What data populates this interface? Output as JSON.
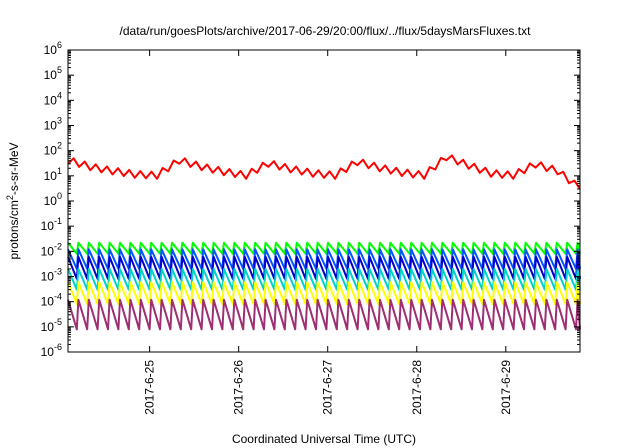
{
  "chart_data": {
    "type": "line",
    "title": "/data/run/goesPlots/archive/2017-06-29/20:00/flux/../flux/5daysMarsFluxes.txt",
    "xlabel": "Coordinated Universal Time (UTC)",
    "ylabel": "protons/cm2-s-sr-MeV",
    "ylabel_parts": {
      "prefix": "protons/cm",
      "sup": "2",
      "suffix": "-s-sr-MeV"
    },
    "x_ticks": [
      "2017-6-25",
      "2017-6-26",
      "2017-6-27",
      "2017-6-28",
      "2017-6-29"
    ],
    "x_range": [
      "2017-06-24 02:00",
      "2017-06-29 20:00"
    ],
    "y_scale": "log",
    "y_ticks": [
      {
        "base": "10",
        "exp": "-6"
      },
      {
        "base": "10",
        "exp": "-5"
      },
      {
        "base": "10",
        "exp": "-4"
      },
      {
        "base": "10",
        "exp": "-3"
      },
      {
        "base": "10",
        "exp": "-2"
      },
      {
        "base": "10",
        "exp": "-1"
      },
      {
        "base": "10",
        "exp": "0"
      },
      {
        "base": "10",
        "exp": "1"
      },
      {
        "base": "10",
        "exp": "2"
      },
      {
        "base": "10",
        "exp": "3"
      },
      {
        "base": "10",
        "exp": "4"
      },
      {
        "base": "10",
        "exp": "5"
      },
      {
        "base": "10",
        "exp": "6"
      }
    ],
    "ylim": [
      1e-06,
      1000000.0
    ],
    "grid": false,
    "legend": "none",
    "series": [
      {
        "color": "#ff0000",
        "x": [
          "06-24 02:00",
          "06-24 08:00",
          "06-24 14:00",
          "06-24 20:00",
          "06-25 02:00",
          "06-25 08:00",
          "06-25 14:00",
          "06-25 20:00",
          "06-26 02:00",
          "06-26 08:00",
          "06-26 14:00",
          "06-26 20:00",
          "06-27 02:00",
          "06-27 08:00",
          "06-27 14:00",
          "06-27 20:00",
          "06-28 02:00",
          "06-28 08:00",
          "06-28 14:00",
          "06-28 20:00",
          "06-29 02:00",
          "06-29 08:00",
          "06-29 14:00",
          "06-29 20:00"
        ],
        "values": [
          40,
          22,
          15,
          11,
          10,
          40,
          22,
          14,
          10,
          30,
          18,
          12,
          10,
          35,
          20,
          13,
          10,
          55,
          25,
          12,
          10,
          28,
          15,
          3
        ]
      },
      {
        "color": "#00ff00",
        "peak": 0.022,
        "trough": 0.008
      },
      {
        "color": "#0055ff",
        "peak": 0.012,
        "trough": 0.002
      },
      {
        "color": "#0000cc",
        "peak": 0.006,
        "trough": 0.0008
      },
      {
        "color": "#00d2c8",
        "peak": 0.002,
        "trough": 0.0003
      },
      {
        "color": "#ffff00",
        "peak": 0.0006,
        "trough": 8e-05
      },
      {
        "color": "#9e2f73",
        "peak": 0.00012,
        "trough": 8e-06
      }
    ]
  }
}
